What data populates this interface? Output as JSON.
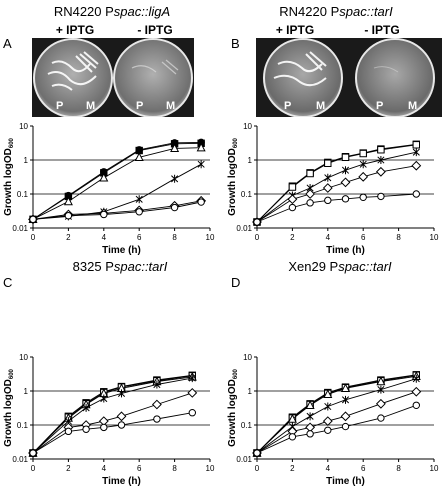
{
  "panels": [
    {
      "letter": "A",
      "title_prefix": "RN4220 P",
      "title_italic": "spac::ligA",
      "iptg_plus": "+ IPTG",
      "iptg_minus": "- IPTG",
      "plate_left_labels": [
        "P",
        "M"
      ],
      "plate_right_labels": [
        "P",
        "M"
      ]
    },
    {
      "letter": "B",
      "title_prefix": "RN4220 P",
      "title_italic": "spac::tarI",
      "iptg_plus": "+ IPTG",
      "iptg_minus": "- IPTG",
      "plate_left_labels": [
        "P",
        "M"
      ],
      "plate_right_labels": [
        "P",
        "M"
      ]
    },
    {
      "letter": "C",
      "title_prefix": "8325 P",
      "title_italic": "spac::tarI"
    },
    {
      "letter": "D",
      "title_prefix": "Xen29 P",
      "title_italic": "spac::tarI"
    }
  ],
  "colors": {
    "line": "#000000",
    "gridline": "#000000",
    "background": "#ffffff",
    "plate_bg": "#1a1a1a"
  },
  "chart_data": [
    {
      "panel": "A",
      "type": "line",
      "ylog": true,
      "xlabel": "Time (h)",
      "ylabel": "Growth logOD",
      "ylabel_sub": "600",
      "xlim": [
        0,
        10
      ],
      "ylim": [
        0.01,
        10
      ],
      "xticks": [
        0,
        2,
        4,
        6,
        8,
        10
      ],
      "yticks": [
        0.01,
        0.1,
        1,
        10
      ],
      "ytick_labels": [
        "0.01",
        "0.1",
        "1",
        "10"
      ],
      "hgrid": [
        0.1,
        1
      ],
      "series": [
        {
          "marker": "filled-circle",
          "x": [
            0,
            2,
            4,
            6,
            8,
            9.5
          ],
          "y": [
            0.018,
            0.09,
            0.45,
            2.0,
            3.2,
            3.3
          ]
        },
        {
          "marker": "filled-square",
          "x": [
            0,
            2,
            4,
            6,
            8,
            9.5
          ],
          "y": [
            0.018,
            0.085,
            0.42,
            1.9,
            3.0,
            3.1
          ]
        },
        {
          "marker": "triangle",
          "x": [
            0,
            2,
            4,
            6,
            8,
            9.5
          ],
          "y": [
            0.018,
            0.06,
            0.3,
            1.2,
            2.2,
            2.3
          ]
        },
        {
          "marker": "star",
          "x": [
            0,
            2,
            4,
            6,
            8,
            9.5
          ],
          "y": [
            0.018,
            0.022,
            0.03,
            0.07,
            0.28,
            0.75
          ]
        },
        {
          "marker": "diamond",
          "x": [
            0,
            2,
            4,
            6,
            8,
            9.5
          ],
          "y": [
            0.018,
            0.025,
            0.027,
            0.033,
            0.045,
            0.063
          ]
        },
        {
          "marker": "circle",
          "x": [
            0,
            2,
            4,
            6,
            8,
            9.5
          ],
          "y": [
            0.018,
            0.023,
            0.025,
            0.03,
            0.04,
            0.058
          ]
        }
      ]
    },
    {
      "panel": "B",
      "type": "line",
      "ylog": true,
      "xlabel": "Time (h)",
      "ylabel": "Growth logOD",
      "ylabel_sub": "600",
      "xlim": [
        0,
        10
      ],
      "ylim": [
        0.01,
        10
      ],
      "xticks": [
        0,
        2,
        4,
        6,
        8,
        10
      ],
      "yticks": [
        0.01,
        0.1,
        1,
        10
      ],
      "ytick_labels": [
        "0.01",
        "0.1",
        "1",
        "10"
      ],
      "hgrid": [
        0.1,
        1
      ],
      "series": [
        {
          "marker": "filled-square",
          "x": [
            0,
            2,
            3,
            4,
            5,
            6,
            7,
            9
          ],
          "y": [
            0.015,
            0.17,
            0.42,
            0.85,
            1.25,
            1.6,
            2.1,
            2.9
          ]
        },
        {
          "marker": "square",
          "x": [
            0,
            2,
            3,
            4,
            5,
            6,
            7,
            9
          ],
          "y": [
            0.015,
            0.16,
            0.4,
            0.8,
            1.2,
            1.55,
            2.0,
            2.8
          ]
        },
        {
          "marker": "star",
          "x": [
            0,
            2,
            3,
            4,
            5,
            6,
            7,
            9
          ],
          "y": [
            0.015,
            0.09,
            0.15,
            0.3,
            0.5,
            0.75,
            1.0,
            1.7
          ]
        },
        {
          "marker": "diamond",
          "x": [
            0,
            2,
            3,
            4,
            5,
            6,
            7,
            9
          ],
          "y": [
            0.015,
            0.07,
            0.1,
            0.15,
            0.22,
            0.32,
            0.45,
            0.68
          ]
        },
        {
          "marker": "circle",
          "x": [
            0,
            2,
            3,
            4,
            5,
            6,
            7,
            9
          ],
          "y": [
            0.015,
            0.04,
            0.055,
            0.065,
            0.072,
            0.08,
            0.085,
            0.1
          ]
        }
      ]
    },
    {
      "panel": "C",
      "type": "line",
      "ylog": true,
      "xlabel": "Time (h)",
      "ylabel": "Growth logOD",
      "ylabel_sub": "600",
      "xlim": [
        0,
        10
      ],
      "ylim": [
        0.01,
        10
      ],
      "xticks": [
        0,
        2,
        4,
        6,
        8,
        10
      ],
      "yticks": [
        0.01,
        0.1,
        1,
        10
      ],
      "ytick_labels": [
        "0.01",
        "0.1",
        "1",
        "10"
      ],
      "hgrid": [
        0.1,
        1
      ],
      "series": [
        {
          "marker": "filled-square",
          "x": [
            0,
            2,
            3,
            4,
            5,
            7,
            9
          ],
          "y": [
            0.015,
            0.18,
            0.45,
            0.95,
            1.35,
            2.1,
            2.9
          ]
        },
        {
          "marker": "square",
          "x": [
            0,
            2,
            3,
            4,
            5,
            7,
            9
          ],
          "y": [
            0.015,
            0.17,
            0.42,
            0.9,
            1.3,
            2.0,
            2.8
          ]
        },
        {
          "marker": "triangle",
          "x": [
            0,
            2,
            3,
            4,
            5,
            7,
            9
          ],
          "y": [
            0.015,
            0.16,
            0.4,
            0.85,
            1.2,
            1.9,
            2.6
          ]
        },
        {
          "marker": "star",
          "x": [
            0,
            2,
            3,
            4,
            5,
            7,
            9
          ],
          "y": [
            0.015,
            0.13,
            0.32,
            0.6,
            0.85,
            1.55,
            2.4
          ]
        },
        {
          "marker": "diamond",
          "x": [
            0,
            2,
            3,
            4,
            5,
            7,
            9
          ],
          "y": [
            0.015,
            0.085,
            0.1,
            0.13,
            0.18,
            0.4,
            0.88
          ]
        },
        {
          "marker": "circle",
          "x": [
            0,
            2,
            3,
            4,
            5,
            7,
            9
          ],
          "y": [
            0.015,
            0.065,
            0.075,
            0.085,
            0.1,
            0.15,
            0.23
          ]
        }
      ]
    },
    {
      "panel": "D",
      "type": "line",
      "ylog": true,
      "xlabel": "Time (h)",
      "ylabel": "Growth logOD",
      "ylabel_sub": "600",
      "xlim": [
        0,
        10
      ],
      "ylim": [
        0.01,
        10
      ],
      "xticks": [
        0,
        2,
        4,
        6,
        8,
        10
      ],
      "yticks": [
        0.01,
        0.1,
        1,
        10
      ],
      "ytick_labels": [
        "0.01",
        "0.1",
        "1",
        "10"
      ],
      "hgrid": [
        0.1,
        1
      ],
      "series": [
        {
          "marker": "filled-square",
          "x": [
            0,
            2,
            3,
            4,
            5,
            7,
            9
          ],
          "y": [
            0.015,
            0.17,
            0.42,
            0.9,
            1.3,
            2.1,
            3.0
          ]
        },
        {
          "marker": "square",
          "x": [
            0,
            2,
            3,
            4,
            5,
            7,
            9
          ],
          "y": [
            0.015,
            0.16,
            0.4,
            0.85,
            1.25,
            2.0,
            2.9
          ]
        },
        {
          "marker": "triangle",
          "x": [
            0,
            2,
            3,
            4,
            5,
            7,
            9
          ],
          "y": [
            0.015,
            0.15,
            0.38,
            0.8,
            1.2,
            1.9,
            2.7
          ]
        },
        {
          "marker": "star",
          "x": [
            0,
            2,
            3,
            4,
            5,
            7,
            9
          ],
          "y": [
            0.015,
            0.09,
            0.18,
            0.35,
            0.55,
            1.1,
            2.3
          ]
        },
        {
          "marker": "diamond",
          "x": [
            0,
            2,
            3,
            4,
            5,
            7,
            9
          ],
          "y": [
            0.015,
            0.065,
            0.085,
            0.13,
            0.18,
            0.42,
            0.95
          ]
        },
        {
          "marker": "circle",
          "x": [
            0,
            2,
            3,
            4,
            5,
            7,
            9
          ],
          "y": [
            0.015,
            0.045,
            0.055,
            0.07,
            0.09,
            0.16,
            0.38
          ]
        }
      ]
    }
  ]
}
